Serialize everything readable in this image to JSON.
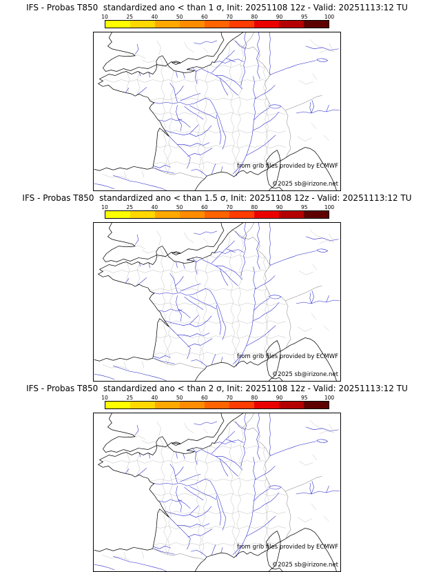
{
  "colorbar": {
    "tick_labels": [
      "10",
      "25",
      "40",
      "50",
      "60",
      "70",
      "80",
      "90",
      "95",
      "100"
    ],
    "segment_colors": [
      "#ffff00",
      "#ffd800",
      "#ffa800",
      "#ff8c00",
      "#ff6400",
      "#ff3c00",
      "#eb0000",
      "#b40000",
      "#5f0000"
    ],
    "border_color": "#000000"
  },
  "panels": [
    {
      "title": "IFS - Probas T850  standardized ano < than 1 σ, Init: 20251108 12z - Valid: 20251113:12 TU"
    },
    {
      "title": "IFS - Probas T850  standardized ano < than 1.5 σ, Init: 20251108 12z - Valid: 20251113:12 TU"
    },
    {
      "title": "IFS - Probas T850  standardized ano < than 2 σ, Init: 20251108 12z - Valid: 20251113:12 TU"
    }
  ],
  "map": {
    "region": "France",
    "credit_line1": "from grib files provided by ECMWF",
    "credit_line2": "©2025 sb@irizone.net",
    "river_color": "#2020cc",
    "coast_color": "#000000",
    "country_border_color": "#8c8c8c",
    "department_border_color": "#b8b8b8"
  }
}
